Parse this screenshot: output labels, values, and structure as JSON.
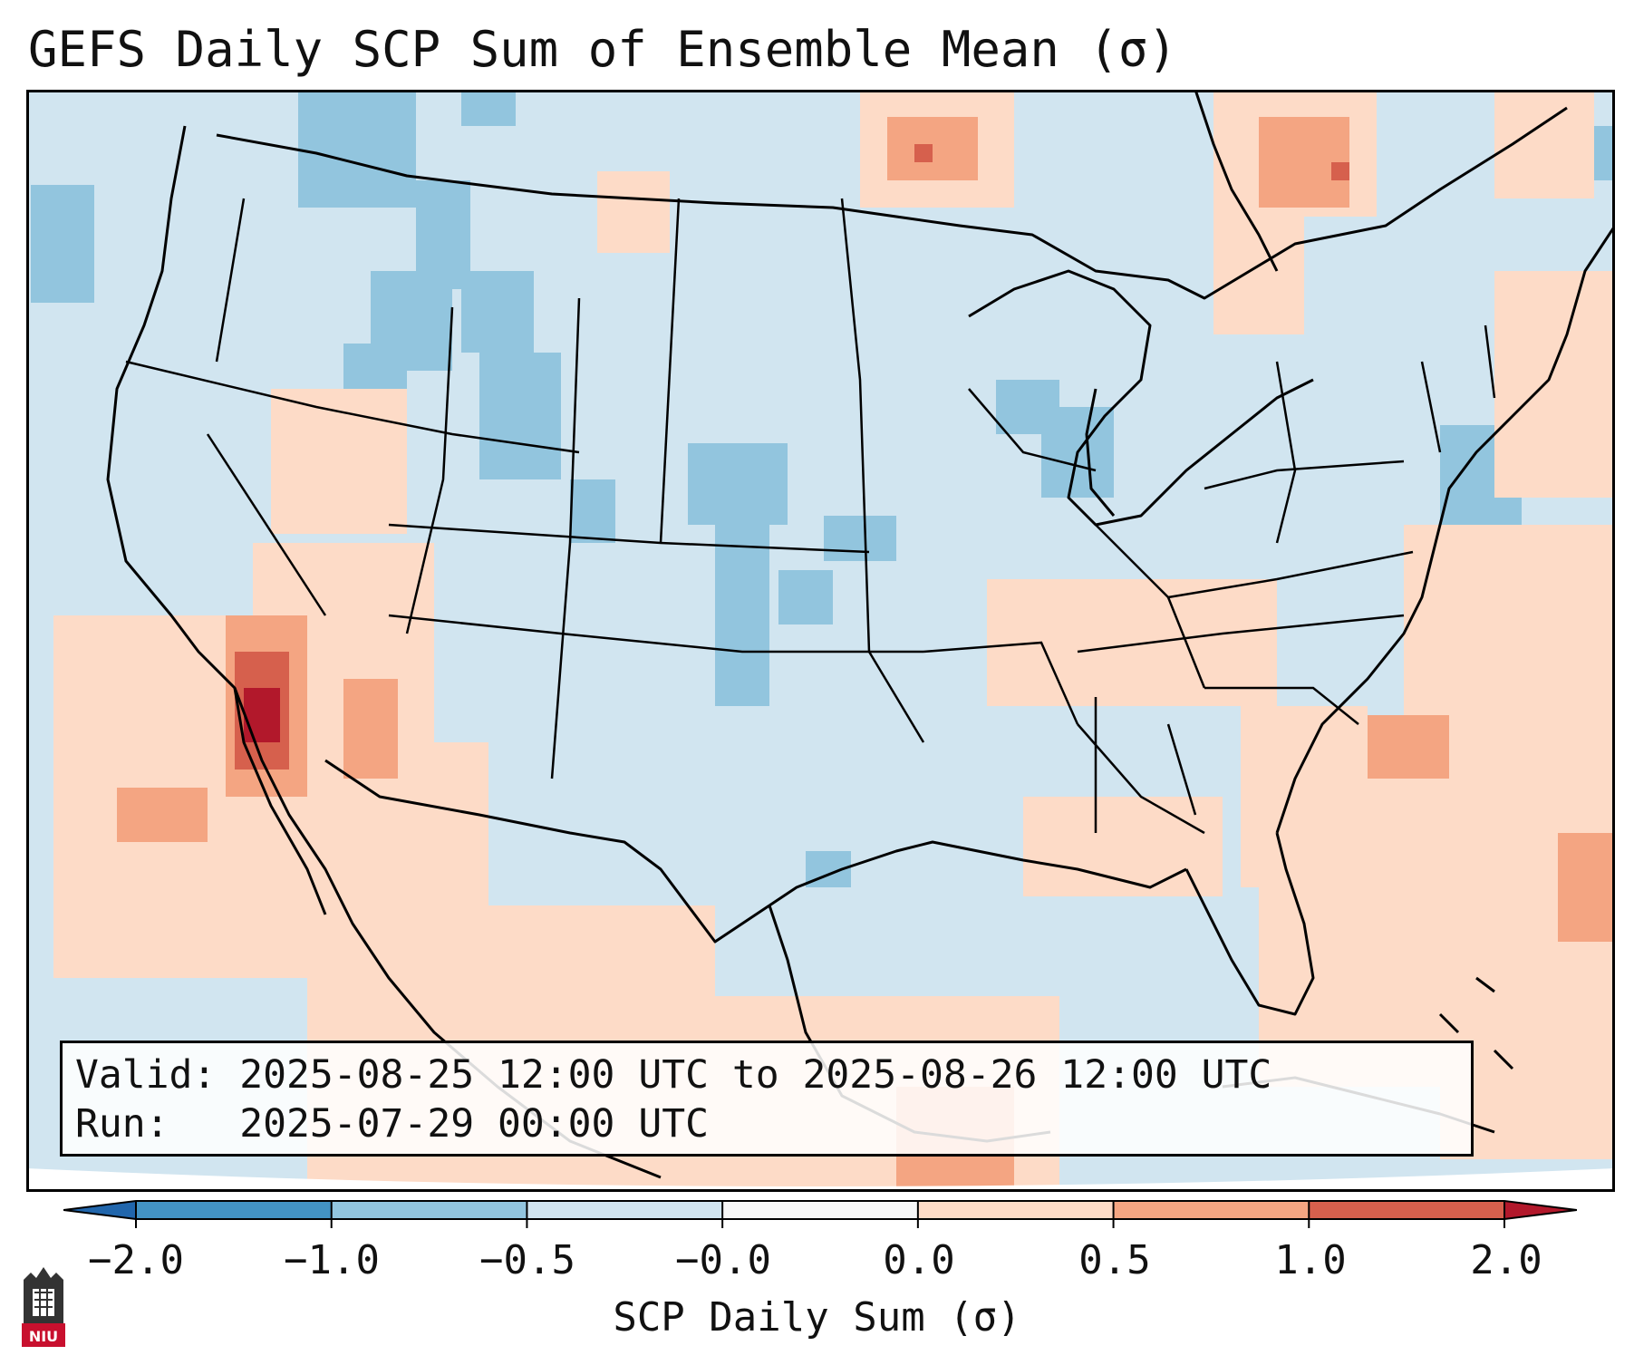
{
  "title": "GEFS Daily SCP Sum of Ensemble Mean (σ)",
  "info": {
    "valid": "Valid: 2025-08-25 12:00 UTC to 2025-08-26 12:00 UTC",
    "run": "Run:   2025-07-29 00:00 UTC"
  },
  "colorbar": {
    "label": "SCP Daily Sum (σ)",
    "ticks": [
      "−2.0",
      "−1.0",
      "−0.5",
      "−0.0",
      "0.0",
      "0.5",
      "1.0",
      "2.0"
    ],
    "colors": [
      "#2166ac",
      "#4393c3",
      "#92c5de",
      "#d1e5f0",
      "#f7f7f7",
      "#fddbc7",
      "#f4a582",
      "#d6604d",
      "#b2182b"
    ]
  },
  "map": {
    "background_color": "#d1e5f0",
    "outline_color": "#000000"
  },
  "logo": {
    "text": "NIU"
  }
}
